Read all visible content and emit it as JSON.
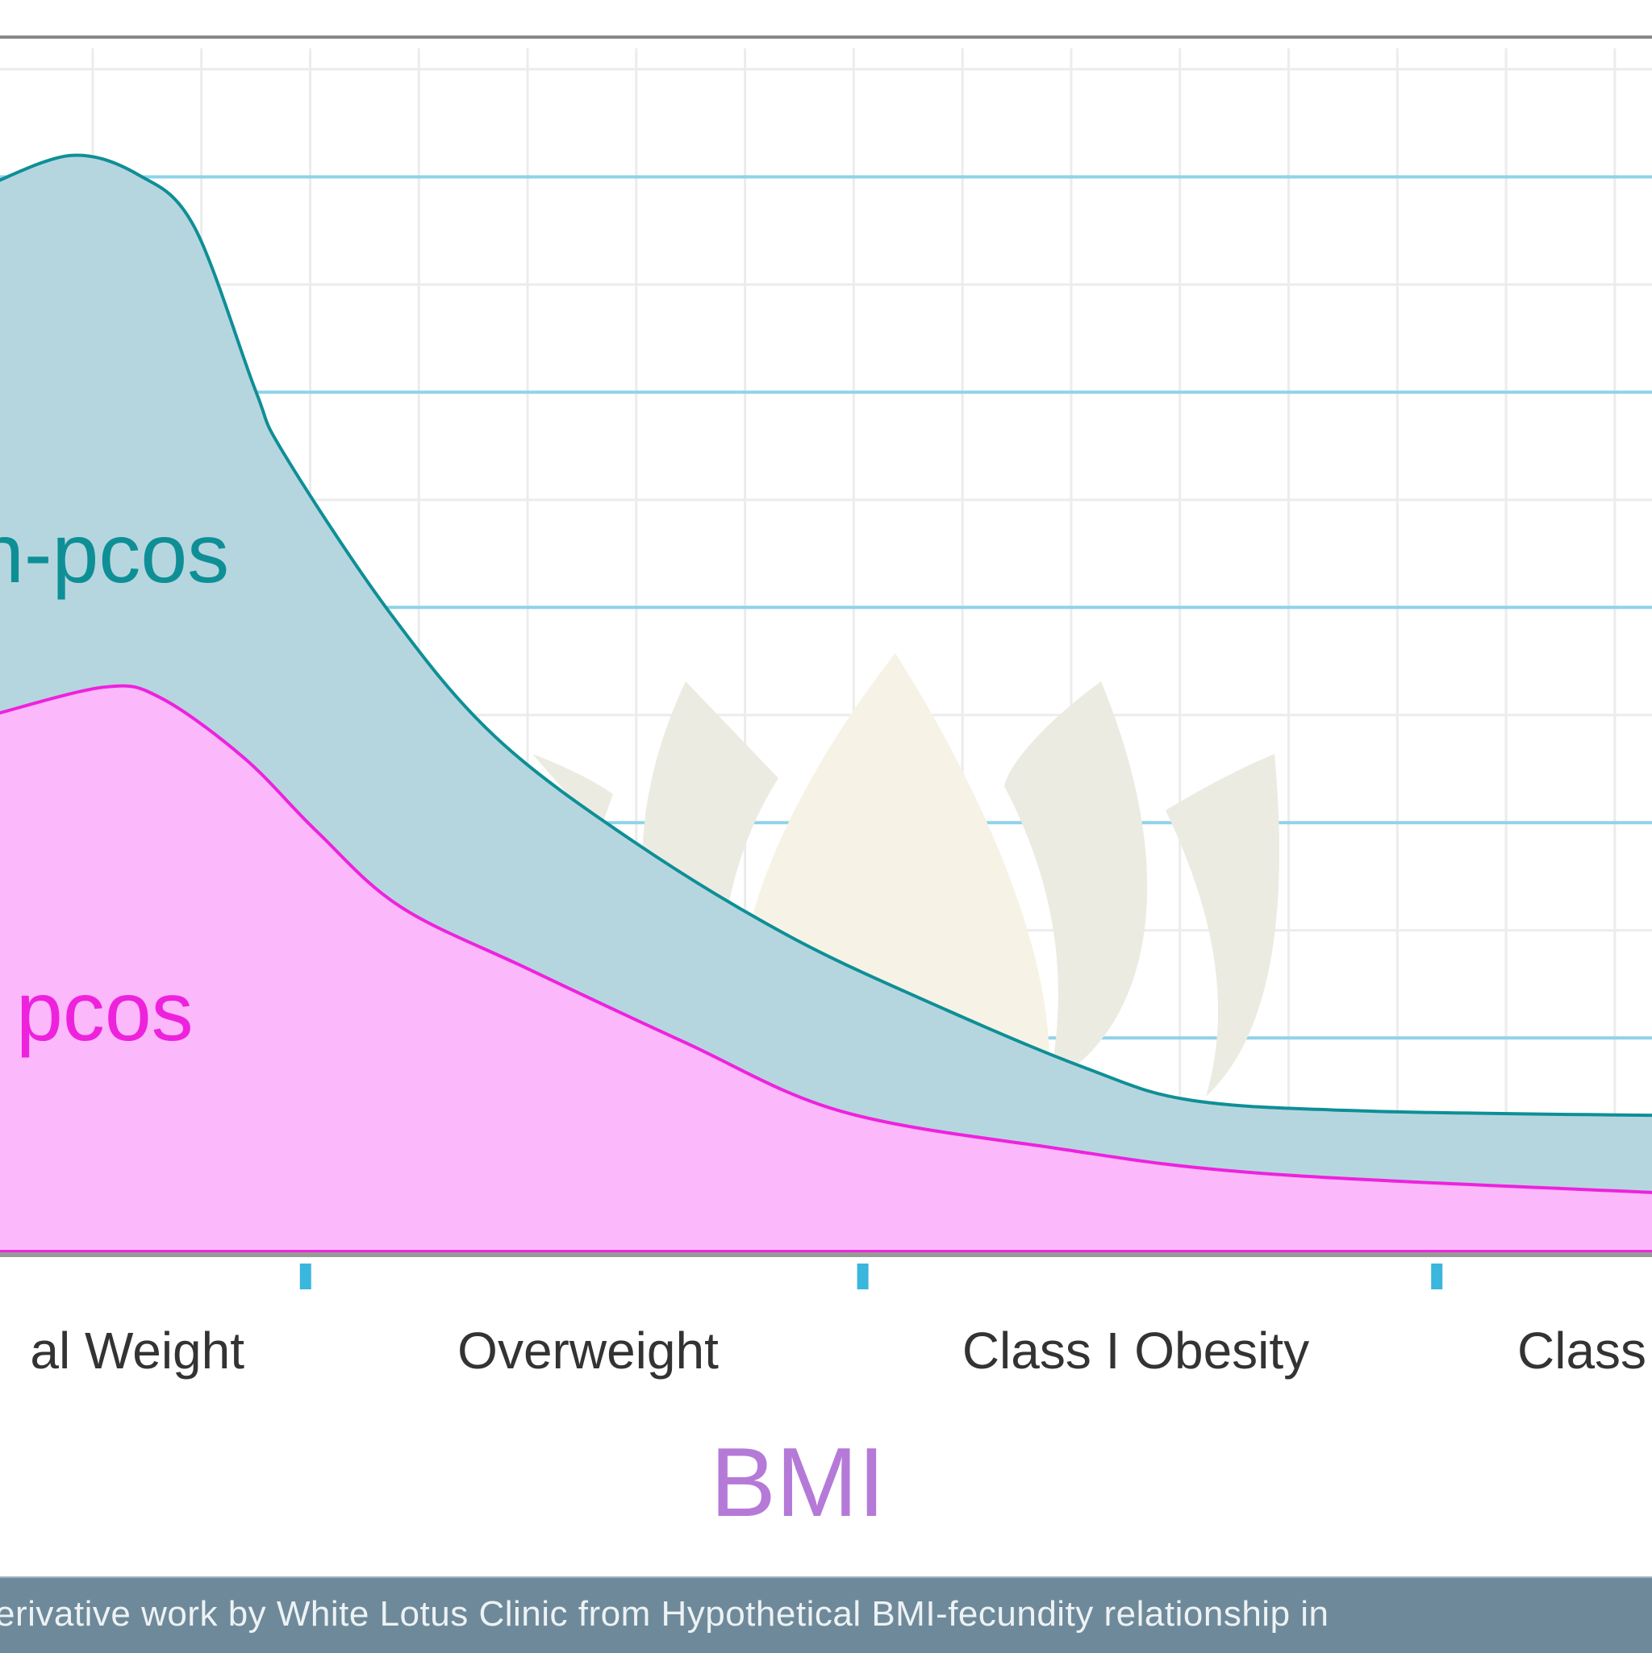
{
  "chart_data": {
    "type": "area",
    "title": "",
    "xlabel": "BMI",
    "ylabel": "",
    "categories": [
      "al Weight",
      "Overweight",
      "Class I Obesity",
      "Class"
    ],
    "x_units": "category boundaries (1 = Normal/Overweight boundary)",
    "y_units": "gridline steps",
    "grid": true,
    "series": [
      {
        "name": "n-pcos",
        "color": "#0e8f96",
        "fill": "#b6d6df",
        "points": [
          [
            0.45,
            4.97
          ],
          [
            0.58,
            5.1
          ],
          [
            0.7,
            5.01
          ],
          [
            0.8,
            4.77
          ],
          [
            0.91,
            4.01
          ],
          [
            0.96,
            3.72
          ],
          [
            1.15,
            2.98
          ],
          [
            1.34,
            2.4
          ],
          [
            1.59,
            1.91
          ],
          [
            1.87,
            1.47
          ],
          [
            2.15,
            1.13
          ],
          [
            2.4,
            0.86
          ],
          [
            2.59,
            0.71
          ],
          [
            2.91,
            0.66
          ],
          [
            3.42,
            0.64
          ]
        ]
      },
      {
        "name": "pcos",
        "color": "#ee22dd",
        "fill": "#fbb8fb",
        "points": [
          [
            0.45,
            2.5
          ],
          [
            0.64,
            2.63
          ],
          [
            0.74,
            2.58
          ],
          [
            0.89,
            2.3
          ],
          [
            1.02,
            1.96
          ],
          [
            1.17,
            1.61
          ],
          [
            1.4,
            1.32
          ],
          [
            1.68,
            0.98
          ],
          [
            1.96,
            0.66
          ],
          [
            2.34,
            0.49
          ],
          [
            2.72,
            0.37
          ],
          [
            3.42,
            0.28
          ]
        ]
      }
    ]
  },
  "footer": {
    "text": "erivative work by White Lotus Clinic from Hypothetical BMI-fecundity relationship in"
  },
  "colors": {
    "axis_label": "#b57ad8",
    "gridline": "#8fd3ea",
    "tick": "#3bb6dc",
    "footer_bg": "#6e8a9a"
  }
}
